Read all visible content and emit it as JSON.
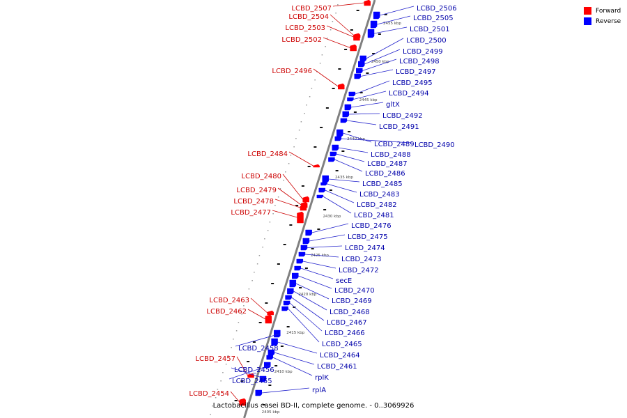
{
  "legend": {
    "forward_label": "Forward",
    "reverse_label": "Reverse",
    "forward_color": "#ff0000",
    "reverse_color": "#0000ff"
  },
  "caption": "Lactobacillus casei BD-II, complete genome. - 0..3069926",
  "colors": {
    "backbone": "#808080",
    "forward_label": "#cc0000",
    "reverse_label": "#0000aa",
    "leader": "#000000"
  },
  "tick_labels": [
    "2455 kbp",
    "2450 kbp",
    "2445 kbp",
    "2440 kbp",
    "2435 kbp",
    "2430 kbp",
    "2425 kbp",
    "2420 kbp",
    "2415 kbp",
    "2410 kbp",
    "2405 kbp"
  ],
  "genes": [
    {
      "name": "LCBD_2507",
      "strand": "forward"
    },
    {
      "name": "LCBD_2506",
      "strand": "reverse"
    },
    {
      "name": "LCBD_2505",
      "strand": "reverse"
    },
    {
      "name": "LCBD_2504",
      "strand": "forward"
    },
    {
      "name": "LCBD_2503",
      "strand": "forward"
    },
    {
      "name": "LCBD_2502",
      "strand": "forward"
    },
    {
      "name": "LCBD_2501",
      "strand": "reverse"
    },
    {
      "name": "LCBD_2500",
      "strand": "reverse"
    },
    {
      "name": "LCBD_2499",
      "strand": "reverse"
    },
    {
      "name": "LCBD_2498",
      "strand": "reverse"
    },
    {
      "name": "LCBD_2497",
      "strand": "reverse"
    },
    {
      "name": "LCBD_2496",
      "strand": "forward"
    },
    {
      "name": "LCBD_2495",
      "strand": "reverse"
    },
    {
      "name": "LCBD_2494",
      "strand": "reverse"
    },
    {
      "name": "gltX",
      "strand": "reverse"
    },
    {
      "name": "LCBD_2492",
      "strand": "reverse"
    },
    {
      "name": "LCBD_2491",
      "strand": "reverse"
    },
    {
      "name": "LCBD_2489",
      "strand": "reverse"
    },
    {
      "name": "LCBD_2490",
      "strand": "reverse"
    },
    {
      "name": "LCBD_2488",
      "strand": "reverse"
    },
    {
      "name": "LCBD_2487",
      "strand": "reverse"
    },
    {
      "name": "LCBD_2484",
      "strand": "forward"
    },
    {
      "name": "LCBD_2486",
      "strand": "reverse"
    },
    {
      "name": "LCBD_2480",
      "strand": "forward"
    },
    {
      "name": "LCBD_2485",
      "strand": "reverse"
    },
    {
      "name": "LCBD_2479",
      "strand": "forward"
    },
    {
      "name": "LCBD_2483",
      "strand": "reverse"
    },
    {
      "name": "LCBD_2478",
      "strand": "forward"
    },
    {
      "name": "LCBD_2482",
      "strand": "reverse"
    },
    {
      "name": "LCBD_2477",
      "strand": "forward"
    },
    {
      "name": "LCBD_2481",
      "strand": "reverse"
    },
    {
      "name": "LCBD_2476",
      "strand": "reverse"
    },
    {
      "name": "LCBD_2475",
      "strand": "reverse"
    },
    {
      "name": "LCBD_2474",
      "strand": "reverse"
    },
    {
      "name": "LCBD_2473",
      "strand": "reverse"
    },
    {
      "name": "LCBD_2472",
      "strand": "reverse"
    },
    {
      "name": "secE",
      "strand": "reverse"
    },
    {
      "name": "LCBD_2470",
      "strand": "reverse"
    },
    {
      "name": "LCBD_2469",
      "strand": "reverse"
    },
    {
      "name": "LCBD_2463",
      "strand": "forward"
    },
    {
      "name": "LCBD_2462",
      "strand": "forward"
    },
    {
      "name": "LCBD_2468",
      "strand": "reverse"
    },
    {
      "name": "LCBD_2467",
      "strand": "reverse"
    },
    {
      "name": "LCBD_2466",
      "strand": "reverse"
    },
    {
      "name": "LCBD_2465",
      "strand": "reverse"
    },
    {
      "name": "LCBD_2458",
      "strand": "reverse"
    },
    {
      "name": "LCBD_2464",
      "strand": "reverse"
    },
    {
      "name": "LCBD_2457",
      "strand": "forward"
    },
    {
      "name": "LCBD_2461",
      "strand": "reverse"
    },
    {
      "name": "LCBD_2456",
      "strand": "reverse"
    },
    {
      "name": "rplK",
      "strand": "reverse"
    },
    {
      "name": "LCBD_2455",
      "strand": "reverse"
    },
    {
      "name": "rplA",
      "strand": "reverse"
    },
    {
      "name": "LCBD_2454",
      "strand": "forward"
    }
  ]
}
